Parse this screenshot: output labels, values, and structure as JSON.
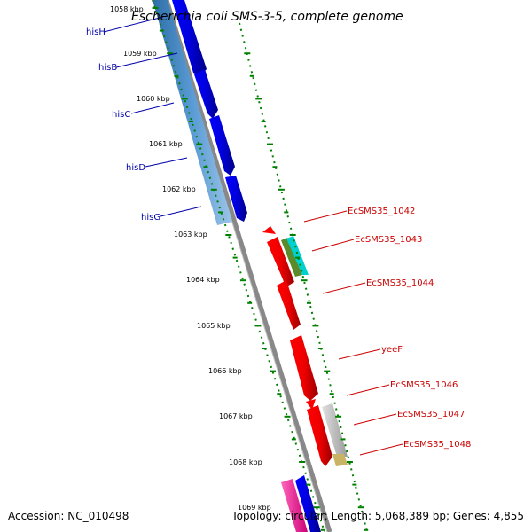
{
  "title": "Escherichia coli SMS-3-5, complete genome",
  "footer": {
    "accession": "Accession: NC_010498",
    "stats": "Topology: circular; Length: 5,068,389 bp; Genes: 4,855"
  },
  "ruler": {
    "labels": [
      "1058 kbp",
      "1059 kbp",
      "1060 kbp",
      "1061 kbp",
      "1062 kbp",
      "1063 kbp",
      "1064 kbp",
      "1065 kbp",
      "1066 kbp",
      "1067 kbp",
      "1068 kbp",
      "1069 kbp"
    ]
  },
  "left_genes": [
    "hisH",
    "hisB",
    "hisC",
    "hisD",
    "hisG"
  ],
  "right_genes": [
    "EcSMS35_1042",
    "EcSMS35_1043",
    "EcSMS35_1044",
    "yeeF",
    "EcSMS35_1046",
    "EcSMS35_1047",
    "EcSMS35_1048"
  ],
  "colors": {
    "forward_gene": "#0000ff",
    "reverse_gene": "#ff0000",
    "blue_label": "#0000aa",
    "red_label": "#cc0000",
    "ruler_tick": "#008000",
    "backbone": "#888888",
    "steelblue_band": "#4d8fc7",
    "gray_gene": "#c8c8c8",
    "olive_gene": "#c8b464",
    "cyan_gene": "#00c8c8",
    "green_gene": "#5a8a2a",
    "pink_gene": "#ff1493"
  }
}
